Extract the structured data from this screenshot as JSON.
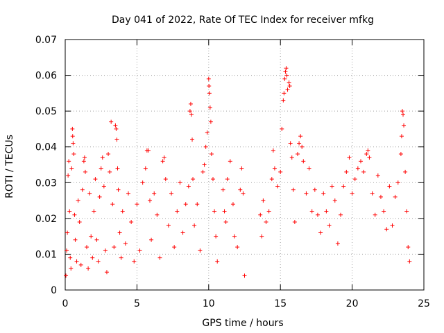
{
  "chart_data": {
    "type": "scatter",
    "title": "Day 041 of 2022, Rate Of TEC Index for receiver mfkg",
    "xlabel": "GPS time / hours",
    "ylabel": "ROTI / TECUs",
    "xlim": [
      0,
      25
    ],
    "ylim": [
      0,
      0.07
    ],
    "x_ticks": [
      0,
      5,
      10,
      15,
      20,
      25
    ],
    "x_tick_labels": [
      "0",
      "5",
      "10",
      "15",
      "20",
      "25"
    ],
    "y_ticks": [
      0,
      0.01,
      0.02,
      0.03,
      0.04,
      0.05,
      0.06,
      0.07
    ],
    "y_tick_labels": [
      "0",
      "0.01",
      "0.02",
      "0.03",
      "0.04",
      "0.05",
      "0.06",
      "0.07"
    ],
    "grid": true,
    "marker": "+",
    "color": "#ff0000",
    "series": [
      {
        "name": "ROTI",
        "points": [
          [
            0.05,
            0.004
          ],
          [
            0.1,
            0.011
          ],
          [
            0.15,
            0.016
          ],
          [
            0.2,
            0.032
          ],
          [
            0.25,
            0.036
          ],
          [
            0.3,
            0.022
          ],
          [
            0.35,
            0.009
          ],
          [
            0.4,
            0.006
          ],
          [
            0.45,
            0.034
          ],
          [
            0.5,
            0.045
          ],
          [
            0.52,
            0.043
          ],
          [
            0.55,
            0.041
          ],
          [
            0.6,
            0.038
          ],
          [
            0.65,
            0.021
          ],
          [
            0.7,
            0.014
          ],
          [
            0.8,
            0.008
          ],
          [
            0.9,
            0.025
          ],
          [
            1.0,
            0.019
          ],
          [
            1.1,
            0.007
          ],
          [
            1.2,
            0.028
          ],
          [
            1.3,
            0.036
          ],
          [
            1.35,
            0.037
          ],
          [
            1.4,
            0.033
          ],
          [
            1.5,
            0.012
          ],
          [
            1.6,
            0.006
          ],
          [
            1.7,
            0.027
          ],
          [
            1.8,
            0.015
          ],
          [
            1.9,
            0.009
          ],
          [
            2.0,
            0.022
          ],
          [
            2.1,
            0.031
          ],
          [
            2.2,
            0.014
          ],
          [
            2.3,
            0.008
          ],
          [
            2.4,
            0.026
          ],
          [
            2.5,
            0.034
          ],
          [
            2.6,
            0.037
          ],
          [
            2.7,
            0.029
          ],
          [
            2.8,
            0.011
          ],
          [
            2.9,
            0.005
          ],
          [
            3.0,
            0.038
          ],
          [
            3.1,
            0.033
          ],
          [
            3.2,
            0.047
          ],
          [
            3.3,
            0.024
          ],
          [
            3.4,
            0.012
          ],
          [
            3.5,
            0.046
          ],
          [
            3.55,
            0.045
          ],
          [
            3.6,
            0.042
          ],
          [
            3.65,
            0.034
          ],
          [
            3.7,
            0.028
          ],
          [
            3.8,
            0.016
          ],
          [
            3.9,
            0.009
          ],
          [
            4.0,
            0.022
          ],
          [
            4.2,
            0.013
          ],
          [
            4.4,
            0.027
          ],
          [
            4.6,
            0.019
          ],
          [
            4.8,
            0.008
          ],
          [
            5.0,
            0.024
          ],
          [
            5.2,
            0.011
          ],
          [
            5.4,
            0.03
          ],
          [
            5.6,
            0.034
          ],
          [
            5.7,
            0.039
          ],
          [
            5.8,
            0.039
          ],
          [
            5.9,
            0.025
          ],
          [
            6.0,
            0.014
          ],
          [
            6.2,
            0.027
          ],
          [
            6.4,
            0.021
          ],
          [
            6.6,
            0.009
          ],
          [
            6.8,
            0.036
          ],
          [
            6.9,
            0.037
          ],
          [
            7.0,
            0.031
          ],
          [
            7.2,
            0.018
          ],
          [
            7.4,
            0.027
          ],
          [
            7.6,
            0.012
          ],
          [
            7.8,
            0.022
          ],
          [
            8.0,
            0.03
          ],
          [
            8.2,
            0.016
          ],
          [
            8.4,
            0.024
          ],
          [
            8.6,
            0.029
          ],
          [
            8.7,
            0.05
          ],
          [
            8.75,
            0.052
          ],
          [
            8.8,
            0.049
          ],
          [
            8.85,
            0.042
          ],
          [
            8.9,
            0.031
          ],
          [
            9.0,
            0.018
          ],
          [
            9.2,
            0.024
          ],
          [
            9.4,
            0.011
          ],
          [
            9.6,
            0.033
          ],
          [
            9.7,
            0.035
          ],
          [
            9.8,
            0.04
          ],
          [
            9.9,
            0.044
          ],
          [
            10.0,
            0.059
          ],
          [
            10.02,
            0.057
          ],
          [
            10.05,
            0.055
          ],
          [
            10.1,
            0.051
          ],
          [
            10.15,
            0.047
          ],
          [
            10.2,
            0.038
          ],
          [
            10.3,
            0.031
          ],
          [
            10.4,
            0.022
          ],
          [
            10.5,
            0.015
          ],
          [
            10.6,
            0.008
          ],
          [
            11.0,
            0.028
          ],
          [
            11.1,
            0.022
          ],
          [
            11.2,
            0.019
          ],
          [
            11.3,
            0.031
          ],
          [
            11.5,
            0.036
          ],
          [
            11.7,
            0.024
          ],
          [
            11.8,
            0.015
          ],
          [
            12.0,
            0.012
          ],
          [
            12.2,
            0.028
          ],
          [
            12.3,
            0.034
          ],
          [
            12.4,
            0.027
          ],
          [
            12.5,
            0.004
          ],
          [
            13.6,
            0.021
          ],
          [
            13.7,
            0.015
          ],
          [
            13.8,
            0.025
          ],
          [
            14.0,
            0.019
          ],
          [
            14.2,
            0.022
          ],
          [
            14.4,
            0.031
          ],
          [
            14.5,
            0.039
          ],
          [
            14.6,
            0.034
          ],
          [
            14.8,
            0.029
          ],
          [
            15.0,
            0.033
          ],
          [
            15.1,
            0.045
          ],
          [
            15.2,
            0.053
          ],
          [
            15.25,
            0.055
          ],
          [
            15.3,
            0.059
          ],
          [
            15.35,
            0.061
          ],
          [
            15.4,
            0.062
          ],
          [
            15.45,
            0.06
          ],
          [
            15.5,
            0.056
          ],
          [
            15.6,
            0.058
          ],
          [
            15.65,
            0.057
          ],
          [
            15.7,
            0.041
          ],
          [
            15.8,
            0.037
          ],
          [
            15.9,
            0.028
          ],
          [
            16.0,
            0.019
          ],
          [
            16.2,
            0.038
          ],
          [
            16.3,
            0.041
          ],
          [
            16.4,
            0.043
          ],
          [
            16.5,
            0.04
          ],
          [
            16.6,
            0.036
          ],
          [
            16.8,
            0.027
          ],
          [
            17.0,
            0.034
          ],
          [
            17.2,
            0.022
          ],
          [
            17.4,
            0.028
          ],
          [
            17.6,
            0.021
          ],
          [
            17.8,
            0.016
          ],
          [
            18.0,
            0.027
          ],
          [
            18.2,
            0.022
          ],
          [
            18.4,
            0.018
          ],
          [
            18.6,
            0.029
          ],
          [
            18.8,
            0.025
          ],
          [
            19.0,
            0.013
          ],
          [
            19.2,
            0.021
          ],
          [
            19.4,
            0.029
          ],
          [
            19.6,
            0.033
          ],
          [
            19.8,
            0.037
          ],
          [
            20.0,
            0.027
          ],
          [
            20.2,
            0.031
          ],
          [
            20.4,
            0.034
          ],
          [
            20.6,
            0.036
          ],
          [
            20.8,
            0.033
          ],
          [
            21.0,
            0.038
          ],
          [
            21.1,
            0.039
          ],
          [
            21.2,
            0.037
          ],
          [
            21.4,
            0.027
          ],
          [
            21.6,
            0.021
          ],
          [
            21.8,
            0.032
          ],
          [
            22.0,
            0.026
          ],
          [
            22.2,
            0.022
          ],
          [
            22.4,
            0.017
          ],
          [
            22.6,
            0.029
          ],
          [
            22.8,
            0.018
          ],
          [
            23.0,
            0.026
          ],
          [
            23.2,
            0.03
          ],
          [
            23.4,
            0.038
          ],
          [
            23.45,
            0.043
          ],
          [
            23.5,
            0.05
          ],
          [
            23.55,
            0.049
          ],
          [
            23.6,
            0.046
          ],
          [
            23.7,
            0.033
          ],
          [
            23.8,
            0.022
          ],
          [
            23.9,
            0.012
          ],
          [
            24.0,
            0.008
          ]
        ]
      }
    ]
  }
}
